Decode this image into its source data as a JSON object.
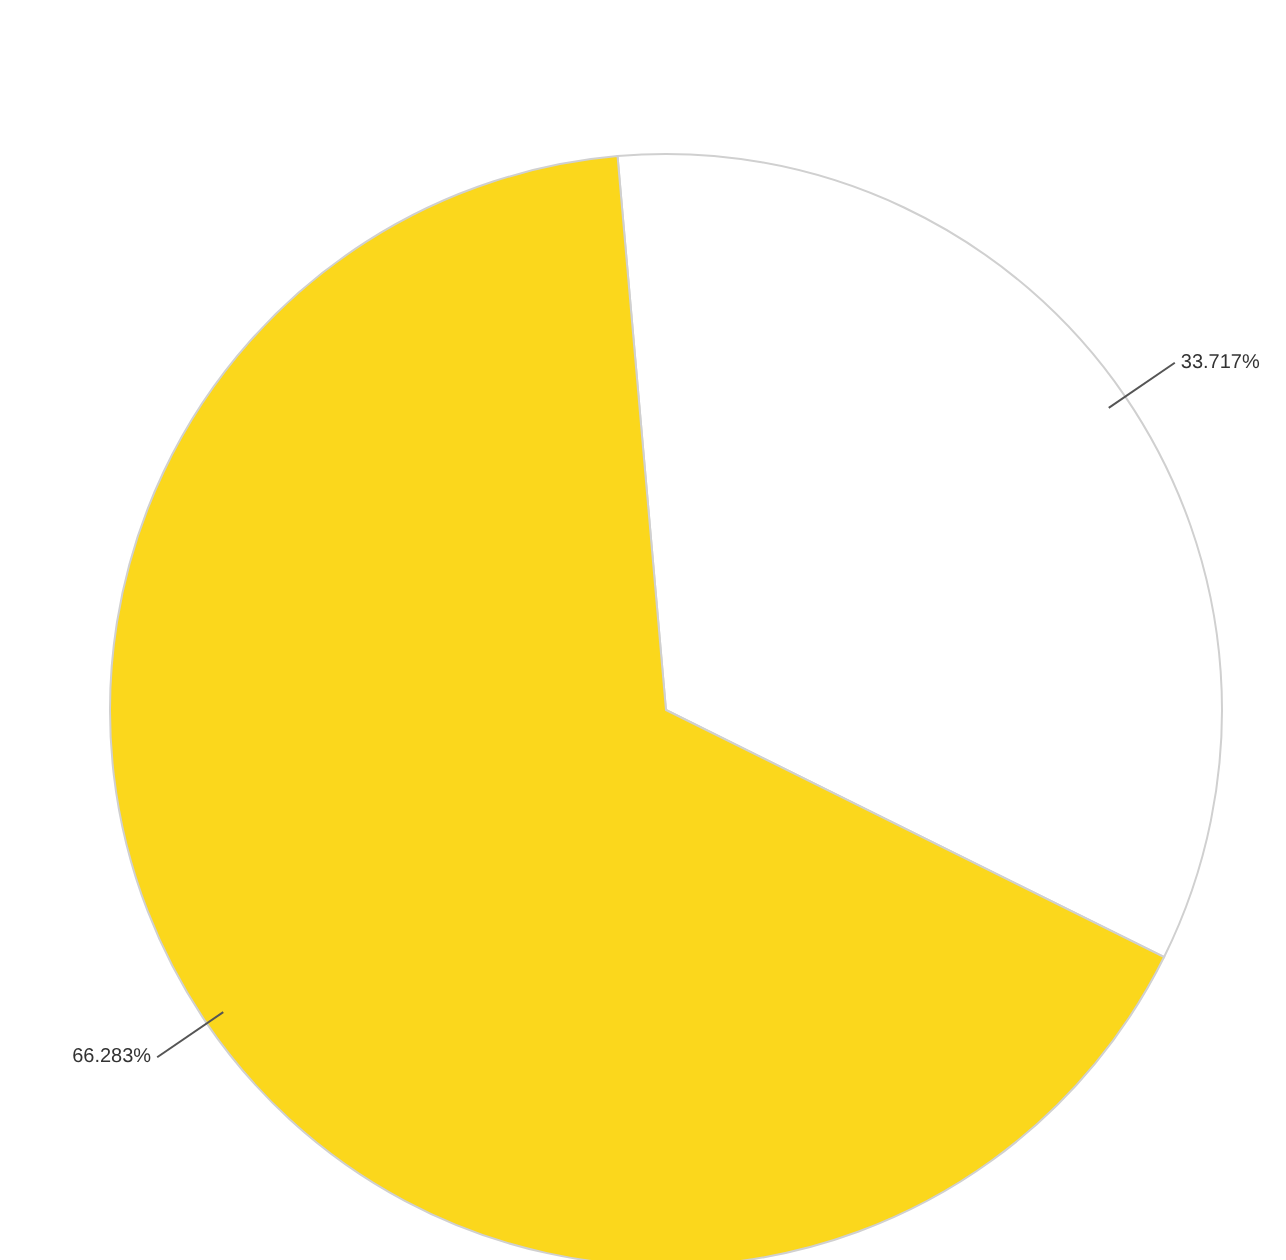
{
  "chart_data": {
    "type": "pie",
    "categories": [
      null,
      null
    ],
    "values": [
      33.717,
      66.283
    ],
    "colors": [
      "#ffffff",
      "#fbd71c"
    ],
    "value_labels": [
      "33.717%",
      "66.283%"
    ]
  }
}
